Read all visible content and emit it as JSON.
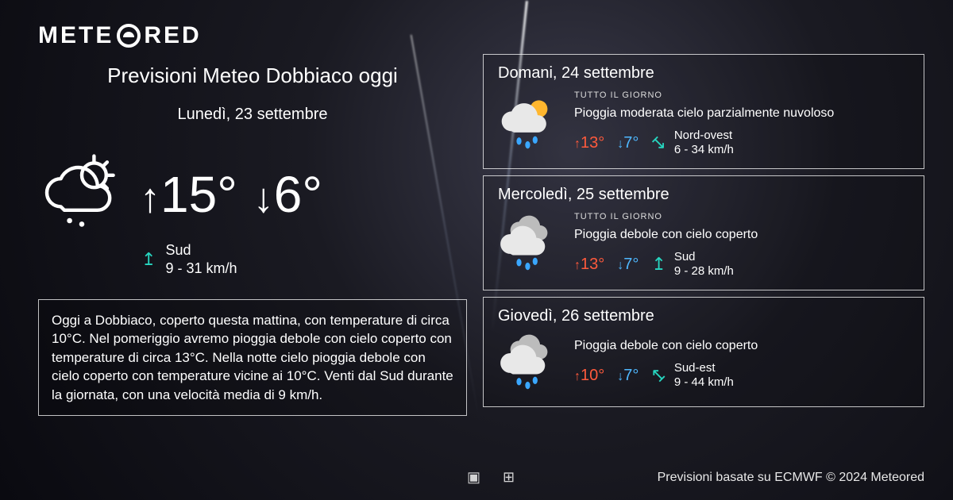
{
  "brand": {
    "pre": "METE",
    "post": "RED"
  },
  "today": {
    "title": "Previsioni Meteo Dobbiaco oggi",
    "date": "Lunedì, 23 settembre",
    "hi": "15°",
    "lo": "6°",
    "wind_dir": "Sud",
    "wind_speed": "9 - 31 km/h",
    "wind_rotation": 0
  },
  "summary": "Oggi a Dobbiaco, coperto questa mattina, con temperature di circa 10°C. Nel pomeriggio avremo pioggia debole con cielo coperto con temperature di circa 13°C. Nella notte cielo pioggia debole con cielo coperto  con temperature vicine ai 10°C. Venti dal Sud durante la giornata, con una velocità media di 9 km/h.",
  "forecast": [
    {
      "date": "Domani, 24 settembre",
      "period": "TUTTO IL GIORNO",
      "desc": "Pioggia moderata cielo parzialmente nuvoloso",
      "hi": "13°",
      "lo": "7°",
      "wind_dir": "Nord-ovest",
      "wind_speed": "6 - 34 km/h",
      "icon": "sun-rain",
      "wind_rotation": 135
    },
    {
      "date": "Mercoledì, 25 settembre",
      "period": "TUTTO IL GIORNO",
      "desc": "Pioggia debole con cielo coperto",
      "hi": "13°",
      "lo": "7°",
      "wind_dir": "Sud",
      "wind_speed": "9 - 28 km/h",
      "icon": "overcast-rain",
      "wind_rotation": 0
    },
    {
      "date": "Giovedì, 26 settembre",
      "period": "",
      "desc": "Pioggia debole con cielo coperto",
      "hi": "10°",
      "lo": "7°",
      "wind_dir": "Sud-est",
      "wind_speed": "9 - 44 km/h",
      "icon": "overcast-rain",
      "wind_rotation": -45
    }
  ],
  "footer": {
    "credit": "Previsioni basate su ECMWF © 2024 Meteored"
  },
  "colors": {
    "hi": "#ff5a3c",
    "lo": "#4fb8ff",
    "wind": "#27d6c0",
    "border": "rgba(255,255,255,0.75)"
  }
}
